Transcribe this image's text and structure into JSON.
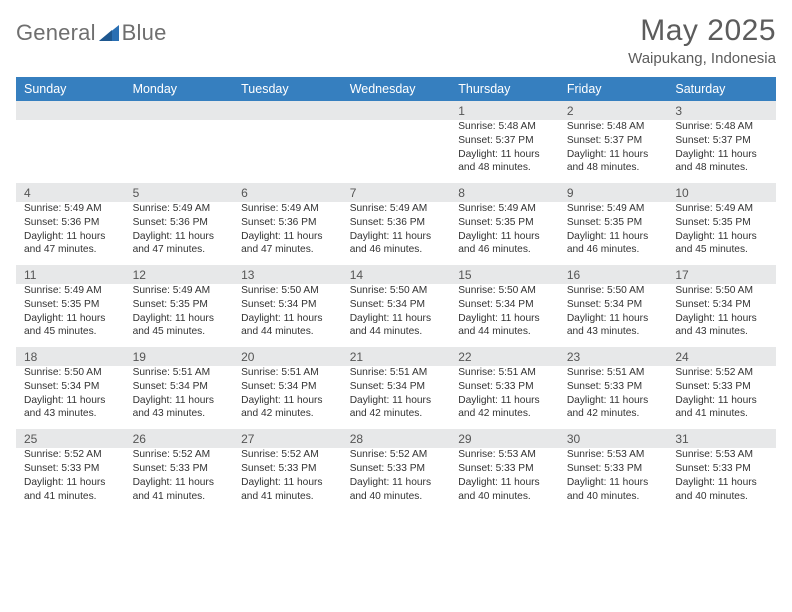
{
  "brand": {
    "name_part1": "General",
    "name_part2": "Blue"
  },
  "title": {
    "month": "May 2025",
    "location": "Waipukang, Indonesia"
  },
  "colors": {
    "header_bg": "#367fbf",
    "header_text": "#ffffff",
    "daynum_bg": "#e7e8e9",
    "body_text": "#333333",
    "logo_blue": "#2a6fb3",
    "title_text": "#5c5c5c"
  },
  "day_labels": [
    "Sunday",
    "Monday",
    "Tuesday",
    "Wednesday",
    "Thursday",
    "Friday",
    "Saturday"
  ],
  "weeks": [
    {
      "nums": [
        "",
        "",
        "",
        "",
        "1",
        "2",
        "3"
      ],
      "details": [
        null,
        null,
        null,
        null,
        {
          "sunrise": "Sunrise: 5:48 AM",
          "sunset": "Sunset: 5:37 PM",
          "d1": "Daylight: 11 hours",
          "d2": "and 48 minutes."
        },
        {
          "sunrise": "Sunrise: 5:48 AM",
          "sunset": "Sunset: 5:37 PM",
          "d1": "Daylight: 11 hours",
          "d2": "and 48 minutes."
        },
        {
          "sunrise": "Sunrise: 5:48 AM",
          "sunset": "Sunset: 5:37 PM",
          "d1": "Daylight: 11 hours",
          "d2": "and 48 minutes."
        }
      ]
    },
    {
      "nums": [
        "4",
        "5",
        "6",
        "7",
        "8",
        "9",
        "10"
      ],
      "details": [
        {
          "sunrise": "Sunrise: 5:49 AM",
          "sunset": "Sunset: 5:36 PM",
          "d1": "Daylight: 11 hours",
          "d2": "and 47 minutes."
        },
        {
          "sunrise": "Sunrise: 5:49 AM",
          "sunset": "Sunset: 5:36 PM",
          "d1": "Daylight: 11 hours",
          "d2": "and 47 minutes."
        },
        {
          "sunrise": "Sunrise: 5:49 AM",
          "sunset": "Sunset: 5:36 PM",
          "d1": "Daylight: 11 hours",
          "d2": "and 47 minutes."
        },
        {
          "sunrise": "Sunrise: 5:49 AM",
          "sunset": "Sunset: 5:36 PM",
          "d1": "Daylight: 11 hours",
          "d2": "and 46 minutes."
        },
        {
          "sunrise": "Sunrise: 5:49 AM",
          "sunset": "Sunset: 5:35 PM",
          "d1": "Daylight: 11 hours",
          "d2": "and 46 minutes."
        },
        {
          "sunrise": "Sunrise: 5:49 AM",
          "sunset": "Sunset: 5:35 PM",
          "d1": "Daylight: 11 hours",
          "d2": "and 46 minutes."
        },
        {
          "sunrise": "Sunrise: 5:49 AM",
          "sunset": "Sunset: 5:35 PM",
          "d1": "Daylight: 11 hours",
          "d2": "and 45 minutes."
        }
      ]
    },
    {
      "nums": [
        "11",
        "12",
        "13",
        "14",
        "15",
        "16",
        "17"
      ],
      "details": [
        {
          "sunrise": "Sunrise: 5:49 AM",
          "sunset": "Sunset: 5:35 PM",
          "d1": "Daylight: 11 hours",
          "d2": "and 45 minutes."
        },
        {
          "sunrise": "Sunrise: 5:49 AM",
          "sunset": "Sunset: 5:35 PM",
          "d1": "Daylight: 11 hours",
          "d2": "and 45 minutes."
        },
        {
          "sunrise": "Sunrise: 5:50 AM",
          "sunset": "Sunset: 5:34 PM",
          "d1": "Daylight: 11 hours",
          "d2": "and 44 minutes."
        },
        {
          "sunrise": "Sunrise: 5:50 AM",
          "sunset": "Sunset: 5:34 PM",
          "d1": "Daylight: 11 hours",
          "d2": "and 44 minutes."
        },
        {
          "sunrise": "Sunrise: 5:50 AM",
          "sunset": "Sunset: 5:34 PM",
          "d1": "Daylight: 11 hours",
          "d2": "and 44 minutes."
        },
        {
          "sunrise": "Sunrise: 5:50 AM",
          "sunset": "Sunset: 5:34 PM",
          "d1": "Daylight: 11 hours",
          "d2": "and 43 minutes."
        },
        {
          "sunrise": "Sunrise: 5:50 AM",
          "sunset": "Sunset: 5:34 PM",
          "d1": "Daylight: 11 hours",
          "d2": "and 43 minutes."
        }
      ]
    },
    {
      "nums": [
        "18",
        "19",
        "20",
        "21",
        "22",
        "23",
        "24"
      ],
      "details": [
        {
          "sunrise": "Sunrise: 5:50 AM",
          "sunset": "Sunset: 5:34 PM",
          "d1": "Daylight: 11 hours",
          "d2": "and 43 minutes."
        },
        {
          "sunrise": "Sunrise: 5:51 AM",
          "sunset": "Sunset: 5:34 PM",
          "d1": "Daylight: 11 hours",
          "d2": "and 43 minutes."
        },
        {
          "sunrise": "Sunrise: 5:51 AM",
          "sunset": "Sunset: 5:34 PM",
          "d1": "Daylight: 11 hours",
          "d2": "and 42 minutes."
        },
        {
          "sunrise": "Sunrise: 5:51 AM",
          "sunset": "Sunset: 5:34 PM",
          "d1": "Daylight: 11 hours",
          "d2": "and 42 minutes."
        },
        {
          "sunrise": "Sunrise: 5:51 AM",
          "sunset": "Sunset: 5:33 PM",
          "d1": "Daylight: 11 hours",
          "d2": "and 42 minutes."
        },
        {
          "sunrise": "Sunrise: 5:51 AM",
          "sunset": "Sunset: 5:33 PM",
          "d1": "Daylight: 11 hours",
          "d2": "and 42 minutes."
        },
        {
          "sunrise": "Sunrise: 5:52 AM",
          "sunset": "Sunset: 5:33 PM",
          "d1": "Daylight: 11 hours",
          "d2": "and 41 minutes."
        }
      ]
    },
    {
      "nums": [
        "25",
        "26",
        "27",
        "28",
        "29",
        "30",
        "31"
      ],
      "details": [
        {
          "sunrise": "Sunrise: 5:52 AM",
          "sunset": "Sunset: 5:33 PM",
          "d1": "Daylight: 11 hours",
          "d2": "and 41 minutes."
        },
        {
          "sunrise": "Sunrise: 5:52 AM",
          "sunset": "Sunset: 5:33 PM",
          "d1": "Daylight: 11 hours",
          "d2": "and 41 minutes."
        },
        {
          "sunrise": "Sunrise: 5:52 AM",
          "sunset": "Sunset: 5:33 PM",
          "d1": "Daylight: 11 hours",
          "d2": "and 41 minutes."
        },
        {
          "sunrise": "Sunrise: 5:52 AM",
          "sunset": "Sunset: 5:33 PM",
          "d1": "Daylight: 11 hours",
          "d2": "and 40 minutes."
        },
        {
          "sunrise": "Sunrise: 5:53 AM",
          "sunset": "Sunset: 5:33 PM",
          "d1": "Daylight: 11 hours",
          "d2": "and 40 minutes."
        },
        {
          "sunrise": "Sunrise: 5:53 AM",
          "sunset": "Sunset: 5:33 PM",
          "d1": "Daylight: 11 hours",
          "d2": "and 40 minutes."
        },
        {
          "sunrise": "Sunrise: 5:53 AM",
          "sunset": "Sunset: 5:33 PM",
          "d1": "Daylight: 11 hours",
          "d2": "and 40 minutes."
        }
      ]
    }
  ]
}
